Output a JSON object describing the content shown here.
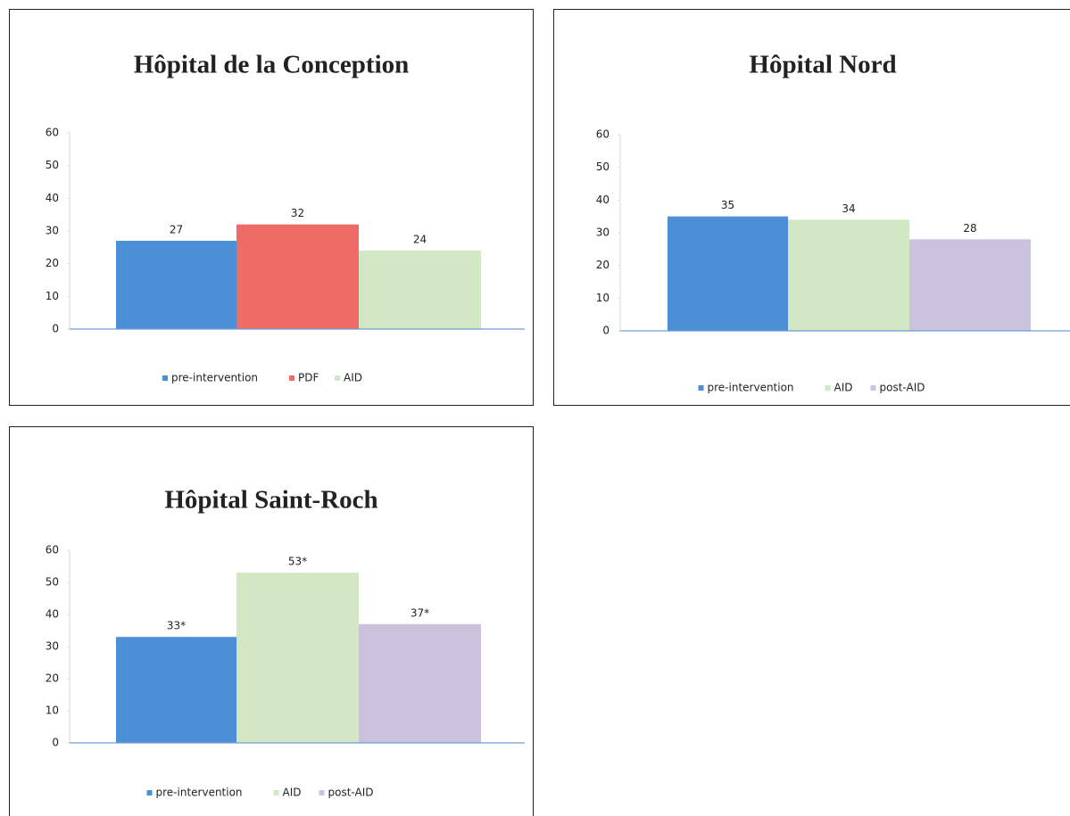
{
  "chart_data": [
    {
      "type": "bar",
      "title": "Hôpital de la Conception",
      "ylim": [
        0,
        60
      ],
      "yticks": [
        0,
        10,
        20,
        30,
        40,
        50,
        60
      ],
      "series": [
        {
          "name": "pre-intervention",
          "color": "#4c8fd6",
          "values": [
            27
          ]
        },
        {
          "name": "PDF",
          "color": "#ee6b66",
          "values": [
            32
          ]
        },
        {
          "name": "AID",
          "color": "#d2e7c3",
          "values": [
            24
          ]
        }
      ]
    },
    {
      "type": "bar",
      "title": "Hôpital Nord",
      "ylim": [
        0,
        60
      ],
      "yticks": [
        0,
        10,
        20,
        30,
        40,
        50,
        60
      ],
      "series": [
        {
          "name": "pre-intervention",
          "color": "#4c8fd6",
          "values": [
            35
          ]
        },
        {
          "name": "AID",
          "color": "#d2e7c3",
          "values": [
            34
          ]
        },
        {
          "name": "post-AID",
          "color": "#cbc3de",
          "values": [
            28
          ]
        }
      ]
    },
    {
      "type": "bar",
      "title": "Hôpital Saint-Roch",
      "ylim": [
        0,
        60
      ],
      "yticks": [
        0,
        10,
        20,
        30,
        40,
        50,
        60
      ],
      "series": [
        {
          "name": "pre-intervention",
          "color": "#4c8fd6",
          "values": [
            33
          ],
          "value_labels": [
            "33*"
          ]
        },
        {
          "name": "AID",
          "color": "#d2e7c3",
          "values": [
            53
          ],
          "value_labels": [
            "53*"
          ]
        },
        {
          "name": "post-AID",
          "color": "#cbc3de",
          "values": [
            37
          ],
          "value_labels": [
            "37*"
          ]
        }
      ]
    }
  ]
}
